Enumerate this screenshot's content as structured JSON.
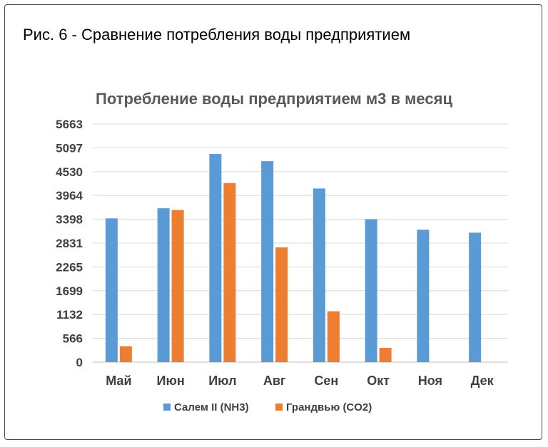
{
  "figure_caption": "Рис. 6 - Сравнение потребления воды предприятием",
  "chart_data": {
    "type": "bar",
    "title": "Потребление воды предприятием м3 в месяц",
    "xlabel": "",
    "ylabel": "",
    "categories": [
      "Май",
      "Июн",
      "Июл",
      "Авг",
      "Сен",
      "Окт",
      "Ноя",
      "Дек"
    ],
    "y_ticks": [
      "0",
      "566",
      "1132",
      "1699",
      "2265",
      "2831",
      "3398",
      "3964",
      "4530",
      "5097",
      "5663"
    ],
    "ylim": [
      0,
      5663
    ],
    "grid": true,
    "legend_position": "bottom",
    "series": [
      {
        "name": "Салем II (NH3)",
        "color": "#5b9bd5",
        "values": [
          3420,
          3660,
          4950,
          4780,
          4130,
          3400,
          3150,
          3080
        ]
      },
      {
        "name": "Грандвью (CO2)",
        "color": "#ed7d31",
        "values": [
          380,
          3620,
          4260,
          2730,
          1210,
          340,
          null,
          null
        ]
      }
    ]
  }
}
